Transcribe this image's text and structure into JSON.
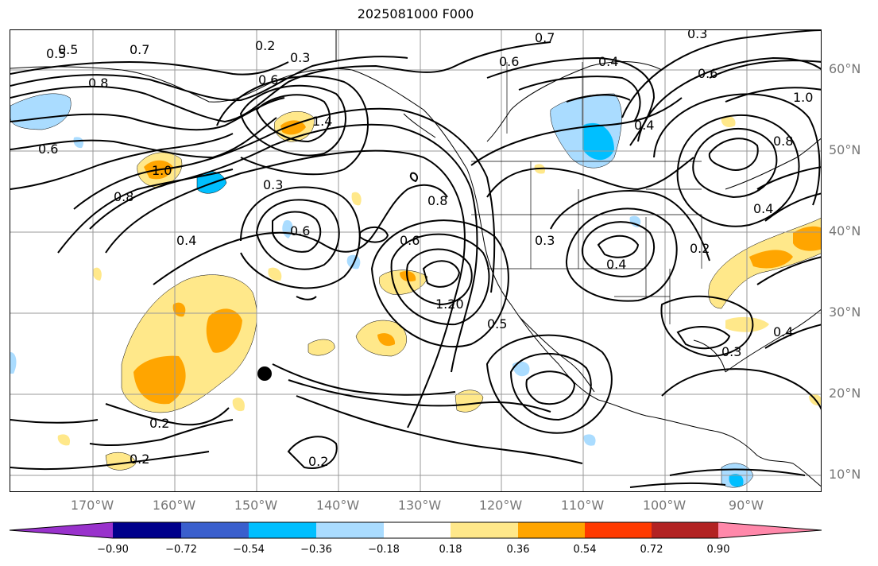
{
  "title": "2025081000 F000",
  "lat_labels": [
    "60°N",
    "50°N",
    "40°N",
    "30°N",
    "20°N",
    "10°N"
  ],
  "lon_labels": [
    "170°W",
    "160°W",
    "150°W",
    "140°W",
    "130°W",
    "120°W",
    "110°W",
    "100°W",
    "90°W"
  ],
  "colorbar": {
    "ticks": [
      "−0.90",
      "−0.72",
      "−0.54",
      "−0.36",
      "−0.18",
      "0.18",
      "0.36",
      "0.54",
      "0.72",
      "0.90"
    ],
    "colors": [
      "#9932cc",
      "#00008b",
      "#3a5fcd",
      "#00bfff",
      "#aadcff",
      "#ffffff",
      "#ffe88a",
      "#ffa500",
      "#ff3a00",
      "#b22222",
      "#ff88aa"
    ]
  },
  "contour_labels": [
    "0.2",
    "0.3",
    "0.6",
    "0.8",
    "1.0",
    "0.4",
    "0.5",
    "0.7",
    "1.4",
    "1.20",
    "0.3",
    "0.6",
    "0.4",
    "0.8",
    "0.6",
    "0.5",
    "0.4",
    "0.2",
    "0.3",
    "0.4",
    "0.2",
    "0.2",
    "0.2",
    "0.6",
    "1.0",
    "0.8",
    "0.4",
    "0.3",
    "0.8",
    "0.6",
    "0.7",
    "0.6",
    "0.5",
    "0.4",
    "0.3"
  ],
  "marker": "storm-location"
}
